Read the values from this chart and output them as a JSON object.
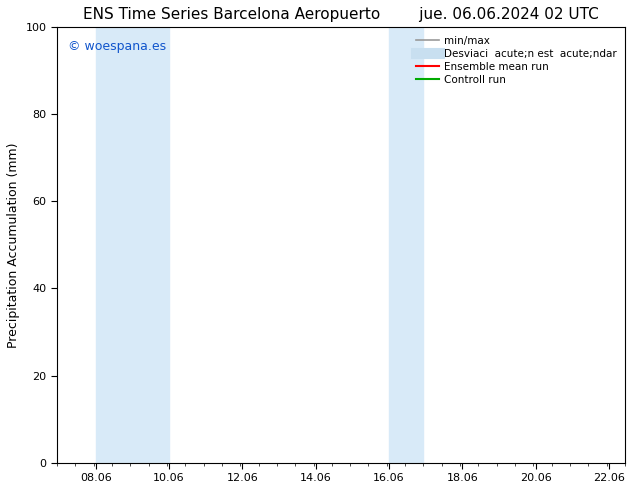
{
  "title_left": "ENS Time Series Barcelona Aeropuerto",
  "title_right": "jue. 06.06.2024 02 UTC",
  "ylabel": "Precipitation Accumulation (mm)",
  "xlim_start": 7.0,
  "xlim_end": 22.5,
  "ylim": [
    0,
    100
  ],
  "xtick_labels": [
    "08.06",
    "10.06",
    "12.06",
    "14.06",
    "16.06",
    "18.06",
    "20.06",
    "22.06"
  ],
  "xtick_positions": [
    8.06,
    10.06,
    12.06,
    14.06,
    16.06,
    18.06,
    20.06,
    22.06
  ],
  "ytick_positions": [
    0,
    20,
    40,
    60,
    80,
    100
  ],
  "shaded_bands": [
    {
      "x_start": 8.06,
      "x_end": 10.06
    },
    {
      "x_start": 16.06,
      "x_end": 17.0
    }
  ],
  "band_color": "#d8eaf8",
  "background_color": "#ffffff",
  "watermark_text": "© woespana.es",
  "watermark_color": "#1155cc",
  "legend_labels": [
    "min/max",
    "Desviaci  acute;n est  acute;ndar",
    "Ensemble mean run",
    "Controll run"
  ],
  "legend_colors": [
    "#999999",
    "#c8dff0",
    "#ff0000",
    "#00aa00"
  ],
  "legend_lws": [
    1.2,
    8,
    1.5,
    1.5
  ],
  "title_fontsize": 11,
  "axis_fontsize": 9,
  "tick_fontsize": 8,
  "legend_fontsize": 7.5
}
